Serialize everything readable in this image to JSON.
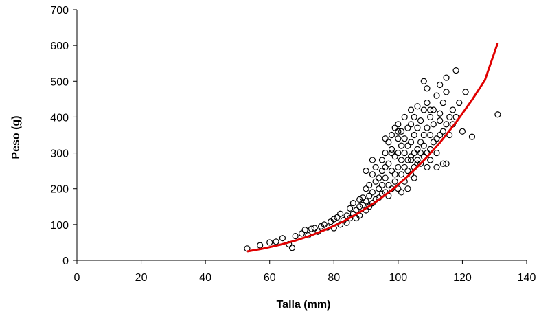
{
  "chart_data": {
    "type": "scatter",
    "title": "",
    "xlabel": "Talla (mm)",
    "ylabel": "Peso (g)",
    "xlim": [
      0,
      140
    ],
    "ylim": [
      0,
      700
    ],
    "xticks": [
      0,
      20,
      40,
      60,
      80,
      100,
      120,
      140
    ],
    "yticks": [
      0,
      100,
      200,
      300,
      400,
      500,
      600,
      700
    ],
    "grid": false,
    "legend": "none",
    "colors": {
      "points": "#000000",
      "curve": "#e00000",
      "axis": "#000000"
    },
    "series": [
      {
        "kind": "points",
        "marker": "open-circle",
        "x": [
          53,
          57,
          60,
          62,
          64,
          66,
          67,
          68,
          70,
          71,
          72,
          73,
          74,
          75,
          76,
          77,
          78,
          79,
          80,
          80,
          81,
          82,
          82,
          83,
          84,
          84,
          85,
          85,
          86,
          86,
          87,
          87,
          88,
          88,
          88,
          89,
          89,
          90,
          90,
          90,
          91,
          91,
          91,
          92,
          92,
          92,
          93,
          93,
          93,
          94,
          94,
          94,
          95,
          95,
          95,
          95,
          96,
          96,
          96,
          96,
          97,
          97,
          97,
          97,
          98,
          98,
          98,
          98,
          99,
          99,
          99,
          99,
          100,
          100,
          100,
          100,
          100,
          101,
          101,
          101,
          101,
          101,
          102,
          102,
          102,
          102,
          102,
          103,
          103,
          103,
          103,
          103,
          104,
          104,
          104,
          104,
          104,
          105,
          105,
          105,
          105,
          105,
          106,
          106,
          106,
          106,
          107,
          107,
          107,
          107,
          108,
          108,
          108,
          108,
          109,
          109,
          109,
          109,
          110,
          110,
          110,
          110,
          111,
          111,
          111,
          112,
          112,
          112,
          113,
          113,
          113,
          114,
          114,
          114,
          115,
          115,
          116,
          116,
          117,
          117,
          118,
          119,
          120,
          113,
          115,
          110,
          109,
          108,
          123,
          131,
          115,
          112,
          106,
          104,
          100,
          98,
          96,
          92,
          90,
          118,
          121
        ],
        "y": [
          33,
          42,
          50,
          52,
          62,
          45,
          35,
          68,
          75,
          85,
          70,
          88,
          90,
          80,
          95,
          100,
          92,
          108,
          90,
          115,
          120,
          100,
          130,
          112,
          125,
          105,
          145,
          118,
          130,
          160,
          140,
          118,
          150,
          170,
          125,
          155,
          175,
          165,
          140,
          200,
          180,
          150,
          210,
          160,
          190,
          240,
          170,
          220,
          260,
          175,
          230,
          200,
          185,
          250,
          280,
          210,
          190,
          260,
          300,
          230,
          210,
          270,
          330,
          180,
          250,
          310,
          200,
          350,
          240,
          290,
          220,
          370,
          260,
          300,
          200,
          340,
          380,
          240,
          280,
          320,
          190,
          360,
          260,
          300,
          220,
          340,
          400,
          280,
          320,
          250,
          370,
          200,
          290,
          330,
          240,
          380,
          420,
          300,
          260,
          350,
          400,
          230,
          310,
          280,
          370,
          430,
          270,
          330,
          390,
          300,
          290,
          350,
          420,
          320,
          300,
          370,
          260,
          440,
          310,
          400,
          280,
          350,
          330,
          420,
          380,
          340,
          300,
          460,
          350,
          410,
          390,
          360,
          440,
          270,
          380,
          470,
          400,
          350,
          420,
          380,
          530,
          440,
          360,
          490,
          510,
          420,
          480,
          500,
          345,
          407,
          270,
          260,
          270,
          280,
          360,
          300,
          340,
          280,
          250,
          400,
          470
        ],
        "note_points": "sampled"
      },
      {
        "kind": "fit-curve",
        "x": [
          53,
          58,
          63,
          68,
          73,
          78,
          83,
          88,
          93,
          98,
          103,
          108,
          113,
          118,
          123,
          127,
          131
        ],
        "y": [
          25,
          33,
          43,
          55,
          70,
          88,
          109,
          134,
          163,
          196,
          235,
          279,
          329,
          385,
          448,
          503,
          607
        ]
      }
    ]
  }
}
